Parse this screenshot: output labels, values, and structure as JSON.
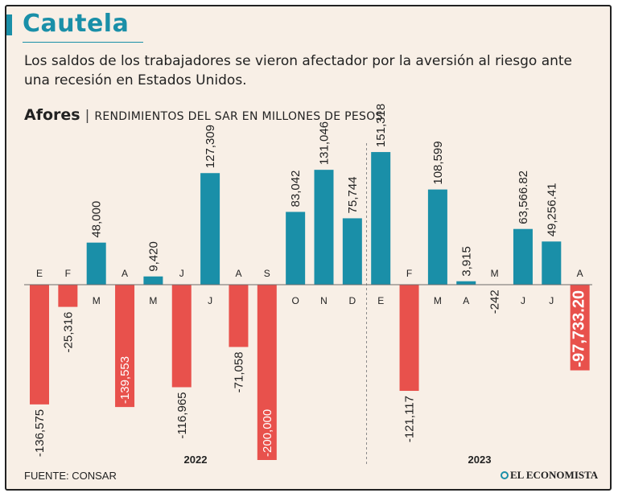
{
  "header": {
    "title": "Cautela",
    "subtitle": "Los saldos de los trabajadores se vieron afectador por la aversión al riesgo ante una recesión en Estados Unidos.",
    "chart_label_bold": "Afores",
    "chart_label_separator": "|",
    "chart_label": "RENDIMIENTOS DEL SAR EN MILLONES DE PESOS"
  },
  "footer": {
    "source": "FUENTE: CONSAR",
    "brand": "EL ECONOMISTA"
  },
  "colors": {
    "positive": "#1a8fa8",
    "negative": "#e8514c",
    "title": "#1a8fa8",
    "background": "#f8efe6"
  },
  "chart_data": {
    "type": "bar",
    "year_labels": [
      "2022",
      "2023"
    ],
    "categories": [
      "E",
      "F",
      "M",
      "A",
      "M",
      "J",
      "J",
      "A",
      "S",
      "O",
      "N",
      "D",
      "E",
      "F",
      "M",
      "A",
      "M",
      "J",
      "J",
      "A"
    ],
    "years": [
      "2022",
      "2022",
      "2022",
      "2022",
      "2022",
      "2022",
      "2022",
      "2022",
      "2022",
      "2022",
      "2022",
      "2022",
      "2023",
      "2023",
      "2023",
      "2023",
      "2023",
      "2023",
      "2023",
      "2023"
    ],
    "values": [
      -136575,
      -25316,
      48000,
      -139553,
      9420,
      -116965,
      127309,
      -71058,
      -200000,
      83042,
      131046,
      75744,
      151318,
      -121117,
      108599,
      3915,
      -242,
      63566.82,
      49256.41,
      -97733.2
    ],
    "value_labels": [
      "-136,575",
      "-25,316",
      "48,000",
      "-139,553",
      "9,420",
      "-116,965",
      "127,309",
      "-71,058",
      "-200,000",
      "83,042",
      "131,046",
      "75,744",
      "151,318",
      "-121,117",
      "108,599",
      "3,915",
      "-242",
      "63,566.82",
      "49,256.41",
      "-97,733.20"
    ],
    "highlight_last": true,
    "ylim": [
      -200000,
      151318
    ],
    "grid": false,
    "legend": "none"
  }
}
